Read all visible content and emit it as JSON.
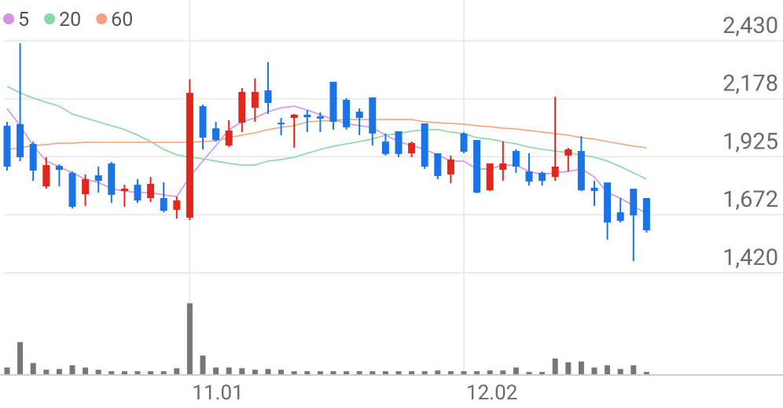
{
  "chart_data": {
    "type": "candlestick",
    "categories": [
      null,
      null,
      null,
      null,
      null,
      null,
      null,
      null,
      null,
      null,
      null,
      null,
      null,
      null,
      "11.01",
      null,
      null,
      null,
      null,
      null,
      null,
      null,
      null,
      null,
      null,
      null,
      null,
      null,
      null,
      null,
      null,
      null,
      null,
      null,
      null,
      "12.02",
      null,
      null,
      null,
      null,
      null,
      null,
      null,
      null,
      null,
      null,
      null,
      null,
      null,
      null
    ],
    "open": [
      2060,
      2067,
      1981,
      1796,
      1885,
      1855,
      1762,
      1844,
      1896,
      1776,
      1803,
      1745,
      1745,
      1694,
      1660,
      2145,
      2049,
      1974,
      2073,
      2138,
      2214,
      2073,
      2094,
      2108,
      2101,
      2251,
      2173,
      2121,
      2183,
      1991,
      2036,
      1940,
      2070,
      1940,
      1848,
      2026,
      1998,
      1779,
      1868,
      1950,
      1861,
      1855,
      1837,
      1930,
      1950,
      1790,
      1813,
      1683,
      1786,
      1745
    ],
    "high": [
      2077,
      2419,
      1991,
      1923,
      1892,
      1861,
      1848,
      1882,
      1902,
      1803,
      1827,
      1837,
      1813,
      1752,
      2262,
      2152,
      2077,
      2084,
      2224,
      2265,
      2337,
      2094,
      2111,
      2128,
      2118,
      2251,
      2180,
      2135,
      2183,
      2026,
      2036,
      1991,
      2070,
      1940,
      1930,
      2032,
      1998,
      1896,
      1991,
      1957,
      1940,
      1861,
      2186,
      1964,
      2015,
      1820,
      1813,
      1745,
      1786,
      1745
    ],
    "low": [
      1865,
      1906,
      1820,
      1786,
      1796,
      1700,
      1711,
      1769,
      1724,
      1707,
      1724,
      1728,
      1683,
      1656,
      1649,
      1957,
      1991,
      1967,
      2032,
      2077,
      2111,
      2019,
      1964,
      2032,
      2032,
      2043,
      2043,
      2019,
      1974,
      1930,
      1923,
      1923,
      1872,
      1827,
      1810,
      1940,
      1766,
      1776,
      1820,
      1855,
      1800,
      1800,
      1820,
      1861,
      1776,
      1711,
      1564,
      1639,
      1471,
      1595
    ],
    "close": [
      1882,
      1923,
      1865,
      1889,
      1868,
      1707,
      1827,
      1820,
      1759,
      1786,
      1735,
      1807,
      1690,
      1735,
      2203,
      2008,
      1998,
      2039,
      2207,
      2207,
      2159,
      2067,
      2108,
      2097,
      2091,
      2077,
      2053,
      2094,
      2026,
      1937,
      1937,
      1985,
      1882,
      1841,
      1913,
      1947,
      1769,
      1896,
      1896,
      1882,
      1817,
      1820,
      1882,
      1957,
      1779,
      1776,
      1639,
      1646,
      1670,
      1605
    ],
    "up_color": "#e2261c",
    "down_color": "#1a74e8",
    "volume": [
      9,
      43,
      15,
      6,
      7,
      12,
      9,
      6,
      4,
      4,
      4,
      4,
      4,
      8,
      95,
      25,
      9,
      9,
      8,
      6,
      7,
      6,
      4,
      4,
      4,
      4,
      4,
      4,
      4,
      4,
      4,
      4,
      4,
      5,
      4,
      4,
      4,
      5,
      5,
      9,
      3,
      3,
      21,
      16,
      17,
      9,
      12,
      7,
      12,
      3
    ],
    "volume_color": "#777777",
    "volume_ylim": [
      0,
      100
    ],
    "series": [
      {
        "name": "5",
        "color": "#d591e8",
        "values": [
          2135,
          2060,
          1974,
          1906,
          1882,
          1855,
          1827,
          1813,
          1786,
          1776,
          1769,
          1769,
          1759,
          1752,
          1837,
          1906,
          1974,
          2043,
          2077,
          2094,
          2121,
          2138,
          2145,
          2128,
          2108,
          2087,
          2070,
          2060,
          2053,
          2019,
          1991,
          1974,
          1957,
          1933,
          1906,
          1906,
          1872,
          1872,
          1889,
          1889,
          1861,
          1848,
          1855,
          1861,
          1872,
          1837,
          1769,
          1745,
          1711,
          1677
        ]
      },
      {
        "name": "20",
        "color": "#86d9a0",
        "values": [
          2231,
          2203,
          2180,
          2162,
          2145,
          2111,
          2094,
          2077,
          2060,
          2043,
          2019,
          1991,
          1957,
          1933,
          1923,
          1916,
          1906,
          1896,
          1889,
          1889,
          1906,
          1913,
          1923,
          1940,
          1957,
          1971,
          1981,
          1991,
          2002,
          2019,
          2026,
          2036,
          2043,
          2043,
          2032,
          2026,
          2008,
          2002,
          1991,
          1981,
          1967,
          1957,
          1950,
          1943,
          1933,
          1923,
          1906,
          1882,
          1855,
          1827
        ]
      },
      {
        "name": "60",
        "color": "#f2a47f",
        "values": [
          1957,
          1964,
          1974,
          1978,
          1984,
          1984,
          1988,
          1988,
          1988,
          1988,
          1988,
          1988,
          1988,
          1988,
          1988,
          1991,
          1995,
          2008,
          2019,
          2029,
          2043,
          2053,
          2060,
          2077,
          2080,
          2084,
          2087,
          2087,
          2087,
          2087,
          2087,
          2087,
          2077,
          2073,
          2070,
          2067,
          2060,
          2056,
          2049,
          2046,
          2039,
          2032,
          2026,
          2019,
          2008,
          2002,
          1991,
          1981,
          1971,
          1964
        ]
      }
    ],
    "ylim": [
      1420,
      2590
    ],
    "yticks": [
      {
        "value": 2430,
        "label": "2,430"
      },
      {
        "value": 2177.5,
        "label": "2,178"
      },
      {
        "value": 1925,
        "label": "1,925"
      },
      {
        "value": 1672.5,
        "label": "1,672"
      },
      {
        "value": 1420,
        "label": "1,420"
      }
    ],
    "grid": true
  }
}
